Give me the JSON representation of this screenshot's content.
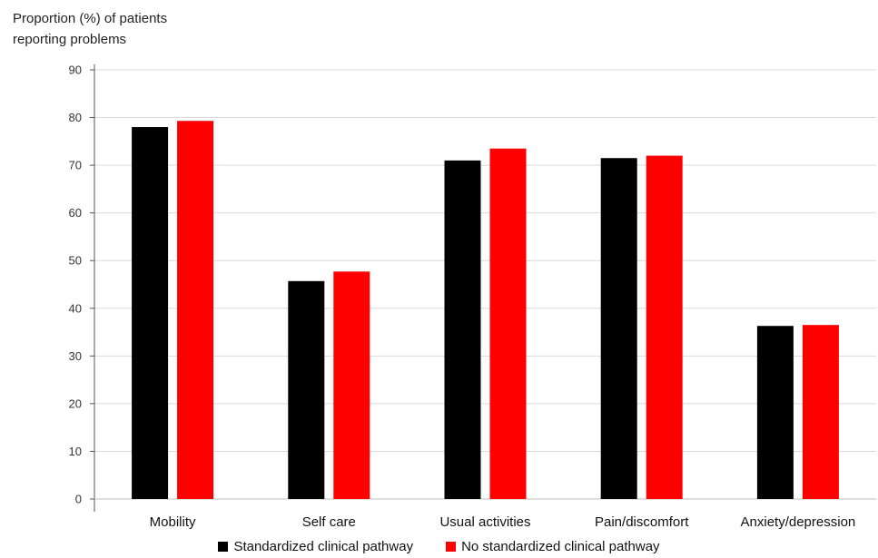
{
  "chart_data": {
    "type": "bar",
    "ylabel_lines": [
      "Proportion (%) of patients",
      "reporting problems"
    ],
    "xlabel": "",
    "categories": [
      "Mobility",
      "Self care",
      "Usual activities",
      "Pain/discomfort",
      "Anxiety/depression"
    ],
    "series": [
      {
        "name": "Standardized clinical pathway",
        "color": "#000000",
        "values": [
          78,
          45.7,
          71,
          71.5,
          36.3
        ]
      },
      {
        "name": "No standardized clinical pathway",
        "color": "#ff0000",
        "values": [
          79.3,
          47.7,
          73.5,
          72,
          36.5
        ]
      }
    ],
    "ylim": [
      0,
      90
    ],
    "yticks": [
      0,
      10,
      20,
      30,
      40,
      50,
      60,
      70,
      80,
      90
    ],
    "grid": true,
    "legend_position": "bottom"
  }
}
